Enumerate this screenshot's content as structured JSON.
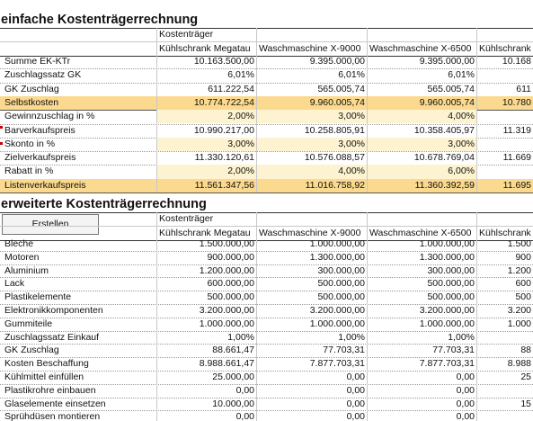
{
  "simple": {
    "title": "einfache Kostenträgerrechnung",
    "group_label": "Kostenträger",
    "columns": [
      "Kühlschrank Megatau",
      "Waschmaschine X-9000",
      "Waschmaschine X-6500",
      "Kühlschrank"
    ],
    "rows": [
      {
        "label": "Summe EK-KTr",
        "values": [
          "10.163.500,00",
          "9.395.000,00",
          "9.395.000,00",
          "10.168"
        ],
        "style": "plain"
      },
      {
        "label": "Zuschlagssatz GK",
        "values": [
          "6,01%",
          "6,01%",
          "6,01%",
          ""
        ],
        "style": "plain"
      },
      {
        "label": "GK Zuschlag",
        "values": [
          "611.222,54",
          "565.005,74",
          "565.005,74",
          "611"
        ],
        "style": "plain"
      },
      {
        "label": "Selbstkosten",
        "values": [
          "10.774.722,54",
          "9.960.005,74",
          "9.960.005,74",
          "10.780"
        ],
        "style": "orange"
      },
      {
        "label": "Gewinnzuschlag in %",
        "values": [
          "2,00%",
          "3,00%",
          "4,00%",
          ""
        ],
        "style": "input"
      },
      {
        "label": "Barverkaufspreis",
        "values": [
          "10.990.217,00",
          "10.258.805,91",
          "10.358.405,97",
          "11.319"
        ],
        "style": "plain"
      },
      {
        "label": "Skonto in %",
        "values": [
          "3,00%",
          "3,00%",
          "3,00%",
          ""
        ],
        "style": "input"
      },
      {
        "label": "Zielverkaufspreis",
        "values": [
          "11.330.120,61",
          "10.576.088,57",
          "10.678.769,04",
          "11.669"
        ],
        "style": "plain"
      },
      {
        "label": "Rabatt in %",
        "values": [
          "2,00%",
          "4,00%",
          "6,00%",
          ""
        ],
        "style": "input"
      },
      {
        "label": "Listenverkaufspreis",
        "values": [
          "11.561.347,56",
          "11.016.758,92",
          "11.360.392,59",
          "11.695"
        ],
        "style": "orange"
      }
    ]
  },
  "extended": {
    "title": "erweiterte Kostenträgerrechnung",
    "button_label": "Erstellen",
    "group_label": "Kostenträger",
    "columns": [
      "Kühlschrank Megatau",
      "Waschmaschine X-9000",
      "Waschmaschine X-6500",
      "Kühlschrank"
    ],
    "rows": [
      {
        "label": "Bleche",
        "values": [
          "1.500.000,00",
          "1.000.000,00",
          "1.000.000,00",
          "1.500"
        ],
        "style": "plain"
      },
      {
        "label": "Motoren",
        "values": [
          "900.000,00",
          "1.300.000,00",
          "1.300.000,00",
          "900"
        ],
        "style": "plain"
      },
      {
        "label": "Aluminium",
        "values": [
          "1.200.000,00",
          "300.000,00",
          "300.000,00",
          "1.200"
        ],
        "style": "plain"
      },
      {
        "label": "Lack",
        "values": [
          "600.000,00",
          "500.000,00",
          "500.000,00",
          "600"
        ],
        "style": "plain"
      },
      {
        "label": "Plastikelemente",
        "values": [
          "500.000,00",
          "500.000,00",
          "500.000,00",
          "500"
        ],
        "style": "plain"
      },
      {
        "label": "Elektronikkomponenten",
        "values": [
          "3.200.000,00",
          "3.200.000,00",
          "3.200.000,00",
          "3.200"
        ],
        "style": "plain"
      },
      {
        "label": "Gummiteile",
        "values": [
          "1.000.000,00",
          "1.000.000,00",
          "1.000.000,00",
          "1.000"
        ],
        "style": "plain"
      },
      {
        "label": "Zuschlagssatz Einkauf",
        "values": [
          "1,00%",
          "1,00%",
          "1,00%",
          ""
        ],
        "style": "plain"
      },
      {
        "label": "GK Zuschlag",
        "values": [
          "88.661,47",
          "77.703,31",
          "77.703,31",
          "88"
        ],
        "style": "plain"
      },
      {
        "label": "Kosten Beschaffung",
        "values": [
          "8.988.661,47",
          "7.877.703,31",
          "7.877.703,31",
          "8.988"
        ],
        "style": "plain"
      },
      {
        "label": "Kühlmittel einfüllen",
        "values": [
          "25.000,00",
          "0,00",
          "0,00",
          "25"
        ],
        "style": "plain"
      },
      {
        "label": "Plastikrohre einbauen",
        "values": [
          "0,00",
          "0,00",
          "0,00",
          ""
        ],
        "style": "plain"
      },
      {
        "label": "Glaselemente einsetzen",
        "values": [
          "10.000,00",
          "0,00",
          "0,00",
          "15"
        ],
        "style": "plain"
      },
      {
        "label": "Sprühdüsen montieren",
        "values": [
          "0,00",
          "0,00",
          "0,00",
          ""
        ],
        "style": "plain"
      }
    ]
  },
  "colors": {
    "orange_row": "#fbd98e",
    "input_row": "#fdf3d0",
    "grid": "#c8c8c8",
    "dotted": "#9a9a9a",
    "header_line": "#333333",
    "red_mark": "#cc0000"
  }
}
